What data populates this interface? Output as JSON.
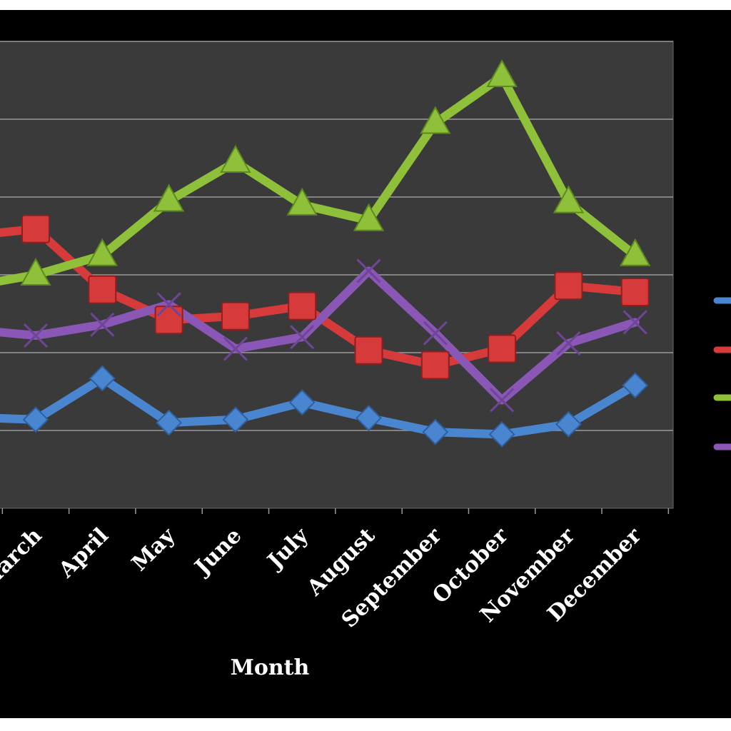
{
  "chart_data": {
    "type": "line",
    "xlabel": "Month",
    "ylabel": "",
    "categories": [
      "March",
      "April",
      "May",
      "June",
      "July",
      "August",
      "September",
      "October",
      "November",
      "December"
    ],
    "visible_partial_category": "",
    "ylim": [
      0,
      6
    ],
    "grid": true,
    "legend_position": "right",
    "background": "#3a3a3a",
    "series": [
      {
        "color": "#4a86d0",
        "marker": "diamond",
        "edge_start_value": 1.17,
        "values": [
          1.14,
          1.67,
          1.1,
          1.14,
          1.36,
          1.16,
          0.98,
          0.95,
          1.08,
          1.58
        ]
      },
      {
        "color": "#d63a3a",
        "marker": "square",
        "edge_start_value": 3.5,
        "values": [
          3.59,
          2.81,
          2.42,
          2.47,
          2.6,
          2.03,
          1.84,
          2.05,
          2.86,
          2.78
        ]
      },
      {
        "color": "#8ec03a",
        "marker": "triangle",
        "edge_start_value": 2.85,
        "values": [
          3.0,
          3.25,
          3.95,
          4.45,
          3.9,
          3.7,
          4.95,
          5.55,
          3.93,
          3.25
        ]
      },
      {
        "color": "#8a57b6",
        "marker": "x",
        "edge_start_value": 2.3,
        "values": [
          2.22,
          2.36,
          2.62,
          2.05,
          2.2,
          3.05,
          2.25,
          1.39,
          2.12,
          2.39
        ]
      }
    ]
  }
}
